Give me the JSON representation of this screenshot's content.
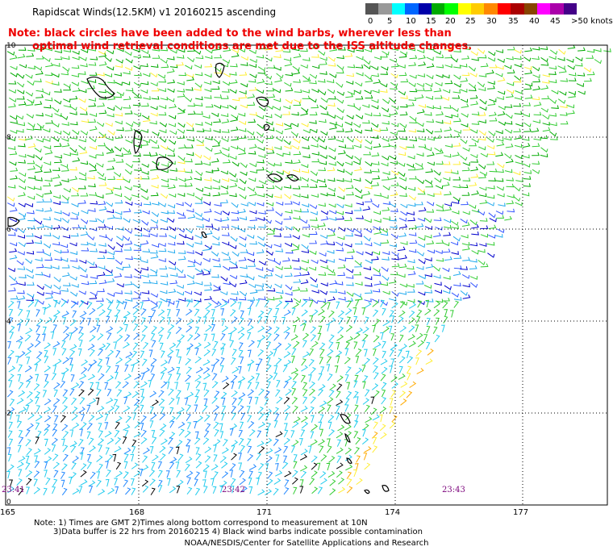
{
  "title": "Rapidscat Winds(12.5KM) v1 20160215 ascending",
  "note": {
    "line1": "Note: black circles have been added to the wind barbs, wherever less than",
    "line2": "optimal wind retrieval conditions are met due to the ISS altitude changes."
  },
  "scale": {
    "colors": [
      "#555555",
      "#999999",
      "#00ffff",
      "#0066ff",
      "#0000aa",
      "#00aa00",
      "#00ff00",
      "#ffff00",
      "#ffcc00",
      "#ff8800",
      "#ff0000",
      "#aa0000",
      "#884400",
      "#ff00ff",
      "#aa00aa",
      "#440088"
    ],
    "labels": [
      "0",
      "5",
      "10",
      "15",
      "20",
      "25",
      "30",
      "35",
      "40",
      "45",
      ">50 knots"
    ]
  },
  "axes": {
    "lon_labels": [
      "165",
      "168",
      "171",
      "174",
      "177"
    ],
    "lat_labels": [
      "10",
      "8",
      "6",
      "4",
      "2",
      "0"
    ]
  },
  "time_labels": [
    "23:41",
    "23:42",
    "23:43"
  ],
  "bottom_note": {
    "line1": "Note: 1) Times are GMT 2)Times along bottom correspond to measurement at 10N",
    "line2": "3)Data buffer is 22 hrs from 20160215 4) Black wind barbs indicate possible contamination"
  },
  "credit": "NOAA/NESDIS/Center for Satellite Applications and Research"
}
